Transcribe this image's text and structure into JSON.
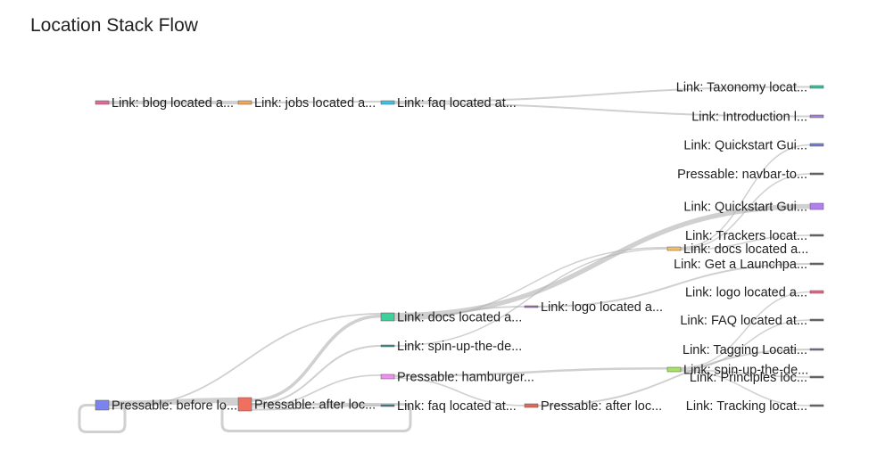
{
  "chart_data": {
    "type": "sankey",
    "title": "Location Stack Flow",
    "nodes": [
      {
        "id": "blog",
        "label": "Link: blog located a...",
        "color": "#e06a9b"
      },
      {
        "id": "jobs",
        "label": "Link: jobs located a...",
        "color": "#f2a65a"
      },
      {
        "id": "faq1",
        "label": "Link: faq located at...",
        "color": "#3fc2e0"
      },
      {
        "id": "taxonomy",
        "label": "Link: Taxonomy locat...",
        "color": "#3fbf9a"
      },
      {
        "id": "introduction",
        "label": "Link: Introduction l...",
        "color": "#a77fe0"
      },
      {
        "id": "quickstart1",
        "label": "Link: Quickstart Gui...",
        "color": "#6f7fd8"
      },
      {
        "id": "navbar",
        "label": "Pressable: navbar-to...",
        "color": "#666666"
      },
      {
        "id": "quickstart2",
        "label": "Link: Quickstart Gui...",
        "color": "#b07ff0"
      },
      {
        "id": "trackers",
        "label": "Link: Trackers locat...",
        "color": "#666666"
      },
      {
        "id": "docs2",
        "label": "Link: docs located a...",
        "color": "#f2c06a"
      },
      {
        "id": "launchpad",
        "label": "Link: Get a Launchpa...",
        "color": "#666666"
      },
      {
        "id": "logo2",
        "label": "Link: logo located a...",
        "color": "#e06a8a"
      },
      {
        "id": "faq3",
        "label": "Link: FAQ located at...",
        "color": "#666666"
      },
      {
        "id": "tagging",
        "label": "Link: Tagging Locati...",
        "color": "#6f7090"
      },
      {
        "id": "spinup2",
        "label": "Link: spin-up-the-de...",
        "color": "#a8e06a"
      },
      {
        "id": "principles",
        "label": "Link: Principles loc...",
        "color": "#666666"
      },
      {
        "id": "tracking",
        "label": "Link: Tracking locat...",
        "color": "#666666"
      },
      {
        "id": "pressable_before",
        "label": "Pressable: before lo...",
        "color": "#7b84ee"
      },
      {
        "id": "pressable_after",
        "label": "Pressable: after loc...",
        "color": "#f07060"
      },
      {
        "id": "docs1",
        "label": "Link: docs located a...",
        "color": "#3fcf9a"
      },
      {
        "id": "spinup1",
        "label": "Link: spin-up-the-de...",
        "color": "#3a8f8f"
      },
      {
        "id": "hamburger",
        "label": "Pressable: hamburger...",
        "color": "#ef8ff0"
      },
      {
        "id": "faq2",
        "label": "Link: faq located at...",
        "color": "#3a7f8f"
      },
      {
        "id": "logo1",
        "label": "Link: logo located a...",
        "color": "#9f6fb0"
      },
      {
        "id": "pressable_after2",
        "label": "Pressable: after loc...",
        "color": "#e06a5a"
      }
    ],
    "links": [
      {
        "source": "blog",
        "target": "jobs",
        "value": 1
      },
      {
        "source": "jobs",
        "target": "faq1",
        "value": 1
      },
      {
        "source": "faq1",
        "target": "taxonomy",
        "value": 1
      },
      {
        "source": "faq1",
        "target": "introduction",
        "value": 1
      },
      {
        "source": "pressable_before",
        "target": "pressable_after",
        "value": 2
      },
      {
        "source": "pressable_before",
        "target": "docs1",
        "value": 1
      },
      {
        "source": "pressable_before",
        "target": "pressable_before",
        "value": 1
      },
      {
        "source": "pressable_after",
        "target": "pressable_after",
        "value": 1
      },
      {
        "source": "pressable_after",
        "target": "docs1",
        "value": 2
      },
      {
        "source": "pressable_after",
        "target": "spinup1",
        "value": 1
      },
      {
        "source": "pressable_after",
        "target": "hamburger",
        "value": 1
      },
      {
        "source": "pressable_after",
        "target": "faq2",
        "value": 1
      },
      {
        "source": "docs1",
        "target": "quickstart2",
        "value": 3
      },
      {
        "source": "docs1",
        "target": "logo1",
        "value": 1
      },
      {
        "source": "docs1",
        "target": "docs2",
        "value": 1
      },
      {
        "source": "spinup1",
        "target": "docs2",
        "value": 1
      },
      {
        "source": "hamburger",
        "target": "spinup2",
        "value": 2
      },
      {
        "source": "hamburger",
        "target": "pressable_after2",
        "value": 1
      },
      {
        "source": "logo1",
        "target": "launchpad",
        "value": 1
      },
      {
        "source": "pressable_after2",
        "target": "tagging",
        "value": 1
      },
      {
        "source": "docs2",
        "target": "quickstart1",
        "value": 1
      },
      {
        "source": "docs2",
        "target": "navbar",
        "value": 1
      },
      {
        "source": "docs2",
        "target": "trackers",
        "value": 1
      },
      {
        "source": "spinup2",
        "target": "logo2",
        "value": 1
      },
      {
        "source": "spinup2",
        "target": "faq3",
        "value": 1
      },
      {
        "source": "spinup2",
        "target": "principles",
        "value": 1
      },
      {
        "source": "spinup2",
        "target": "tracking",
        "value": 1
      }
    ]
  }
}
